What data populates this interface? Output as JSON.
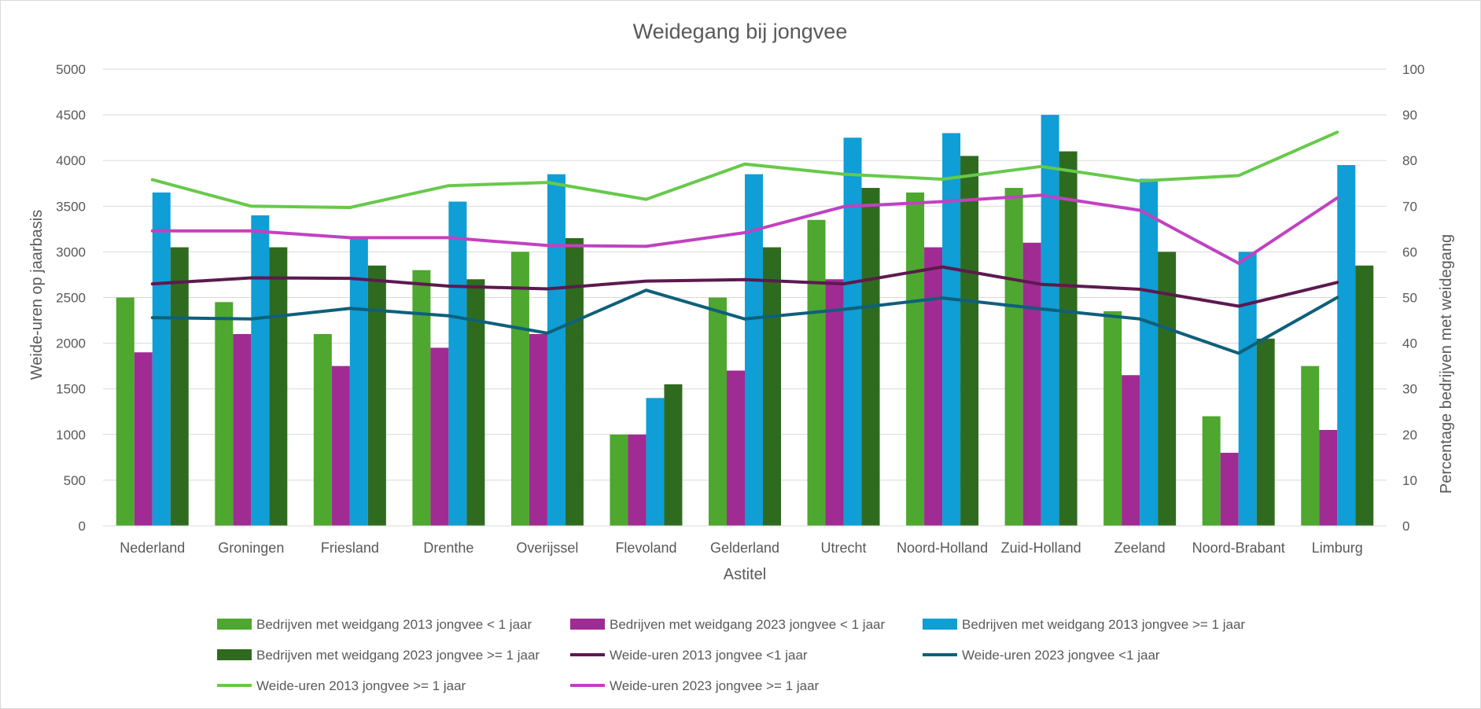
{
  "chart_data": {
    "type": "bar",
    "title": "Weidegang bij jongvee",
    "xlabel": "Astitel",
    "ylabel": "Weide-uren op jaarbasis",
    "y2label": "Percentage bedrijven met weidegang",
    "ylim": [
      0,
      5000
    ],
    "y2lim": [
      0,
      100
    ],
    "yticks": [
      "0",
      "500",
      "1000",
      "1500",
      "2000",
      "2500",
      "3000",
      "3500",
      "4000",
      "4500",
      "5000"
    ],
    "y2ticks": [
      "0",
      "10",
      "20",
      "30",
      "40",
      "50",
      "60",
      "70",
      "80",
      "90",
      "100"
    ],
    "grid": true,
    "legend_position": "bottom",
    "categories": [
      "Nederland",
      "Groningen",
      "Friesland",
      "Drenthe",
      "Overijssel",
      "Flevoland",
      "Gelderland",
      "Utrecht",
      "Noord-Holland",
      "Zuid-Holland",
      "Zeeland",
      "Noord-Brabant",
      "Limburg"
    ],
    "series": [
      {
        "name": "Bedrijven met weidgang  2013 jongvee < 1 jaar",
        "kind": "bar",
        "axis": "left",
        "color": "#4ea72e",
        "values": [
          2500,
          2450,
          2100,
          2800,
          3000,
          1000,
          2500,
          3350,
          3650,
          3700,
          2350,
          1200,
          1750
        ]
      },
      {
        "name": "Bedrijven met weidgang  2023 jongvee < 1 jaar",
        "kind": "bar",
        "axis": "left",
        "color": "#a02b93",
        "values": [
          1900,
          2100,
          1750,
          1950,
          2100,
          1000,
          1700,
          2700,
          3050,
          3100,
          1650,
          800,
          1050
        ]
      },
      {
        "name": "Bedrijven met weidgang  2013 jongvee >= 1 jaar",
        "kind": "bar",
        "axis": "left",
        "color": "#0f9ed5",
        "values": [
          3650,
          3400,
          3150,
          3550,
          3850,
          1400,
          3850,
          4250,
          4300,
          4500,
          3800,
          3000,
          3950
        ]
      },
      {
        "name": "Bedrijven met weidgang  2023 jongvee >= 1 jaar",
        "kind": "bar",
        "axis": "left",
        "color": "#2f6b1f",
        "values": [
          3050,
          3050,
          2850,
          2700,
          3150,
          1550,
          3050,
          3700,
          4050,
          4100,
          3000,
          2050,
          2850
        ]
      },
      {
        "name": "Weide-uren 2013 jongvee <1 jaar",
        "kind": "line",
        "axis": "right",
        "color": "#5c1a4f",
        "values": [
          53,
          54.3,
          54.2,
          52.5,
          51.9,
          53.6,
          53.9,
          53,
          56.7,
          52.9,
          51.8,
          48.1,
          53.3
        ]
      },
      {
        "name": "Weide-uren 2023 jongvee <1 jaar",
        "kind": "line",
        "axis": "right",
        "color": "#0e607a",
        "values": [
          45.6,
          45.3,
          47.6,
          46,
          42.2,
          51.6,
          45.3,
          47.4,
          49.9,
          47.5,
          45.3,
          37.8,
          50
        ]
      },
      {
        "name": "Weide-uren 2013 jongvee >= 1 jaar",
        "kind": "line",
        "axis": "right",
        "color": "#67c94b",
        "values": [
          75.8,
          70,
          69.7,
          74.5,
          75.2,
          71.5,
          79.2,
          77,
          75.9,
          78.7,
          75.5,
          76.7,
          86.2
        ]
      },
      {
        "name": "Weide-uren 2023 jongvee >= 1 jaar",
        "kind": "line",
        "axis": "right",
        "color": "#c042c0",
        "values": [
          64.6,
          64.6,
          63.1,
          63.1,
          61.4,
          61.2,
          64.2,
          69.9,
          71,
          72.4,
          69.1,
          57.5,
          71.8
        ]
      }
    ]
  }
}
